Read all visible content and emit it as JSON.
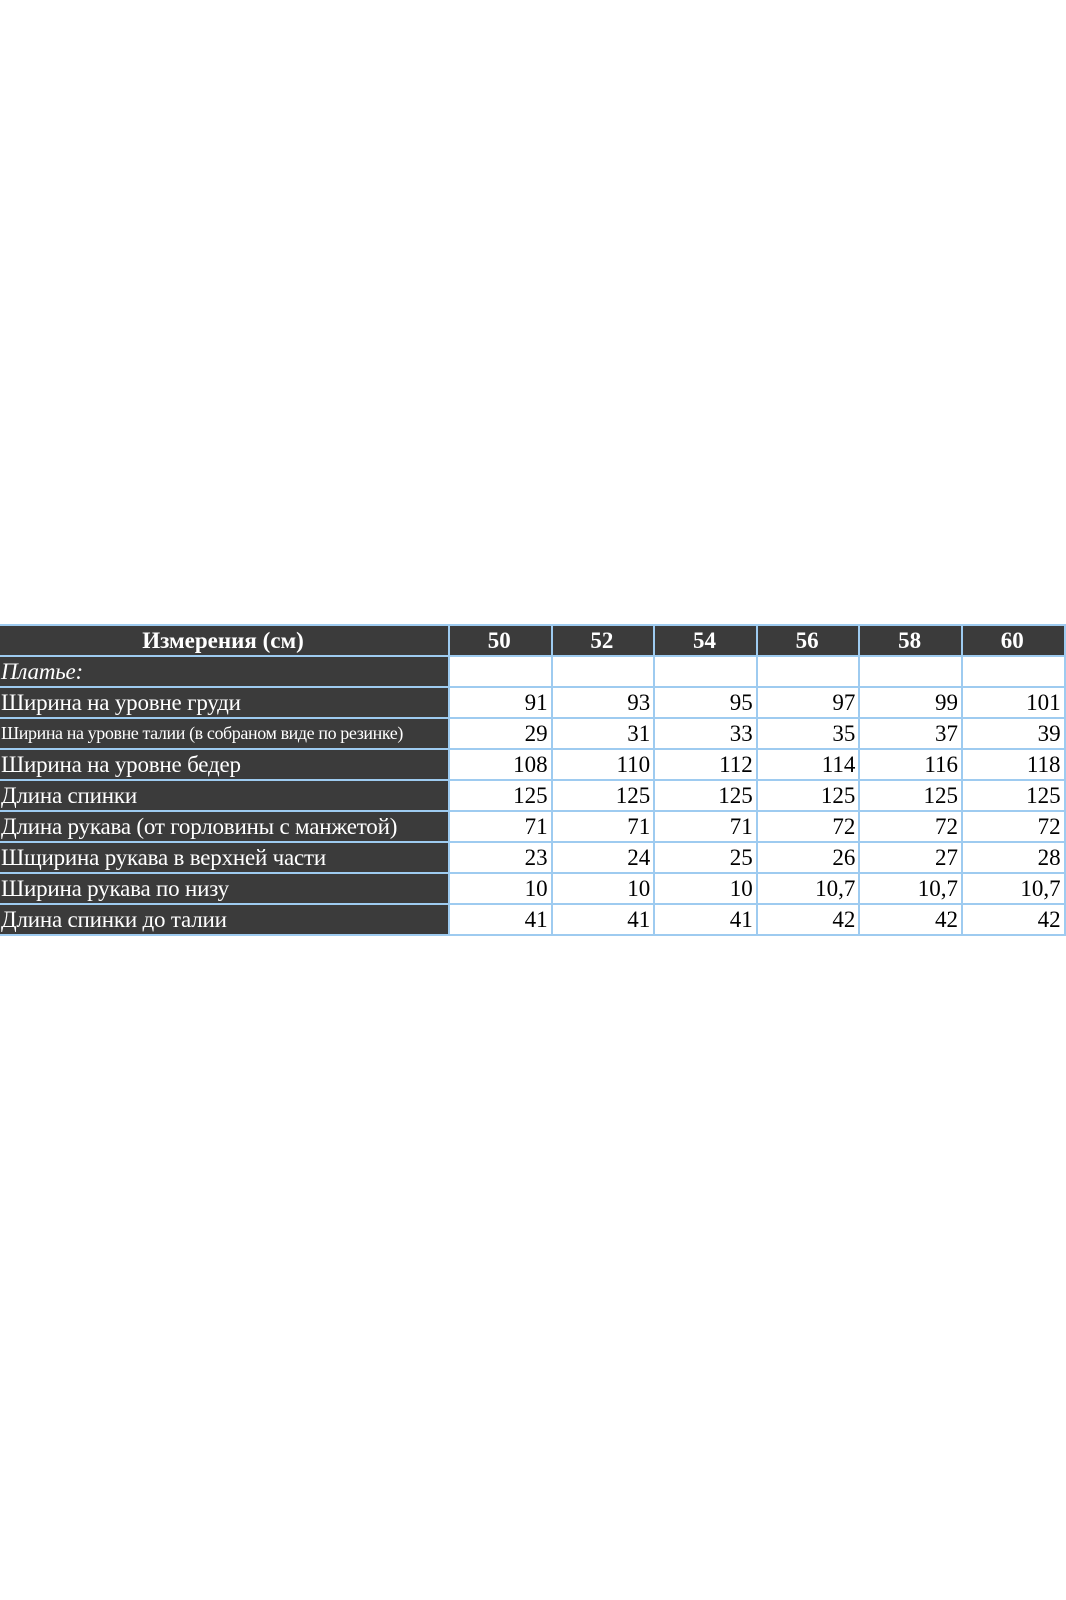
{
  "table": {
    "header": {
      "label": "Измерения (см)",
      "sizes": [
        "50",
        "52",
        "54",
        "56",
        "58",
        "60"
      ]
    },
    "section_label": "Платье:",
    "rows": [
      {
        "label": "Ширина на уровне груди",
        "values": [
          "91",
          "93",
          "95",
          "97",
          "99",
          "101"
        ]
      },
      {
        "label": "Ширина на уровне талии (в собраном виде по резинке)",
        "values": [
          "29",
          "31",
          "33",
          "35",
          "37",
          "39"
        ]
      },
      {
        "label": "Ширина на уровне бедер",
        "values": [
          "108",
          "110",
          "112",
          "114",
          "116",
          "118"
        ]
      },
      {
        "label": "Длина спинки",
        "values": [
          "125",
          "125",
          "125",
          "125",
          "125",
          "125"
        ]
      },
      {
        "label": "Длина рукава (от горловины с манжетой)",
        "values": [
          "71",
          "71",
          "71",
          "72",
          "72",
          "72"
        ]
      },
      {
        "label": "Шщирина рукава в верхней части",
        "values": [
          "23",
          "24",
          "25",
          "26",
          "27",
          "28"
        ]
      },
      {
        "label": "Ширина рукава по низу",
        "values": [
          "10",
          "10",
          "10",
          "10,7",
          "10,7",
          "10,7"
        ]
      },
      {
        "label": "Длина спинки до талии",
        "values": [
          "41",
          "41",
          "41",
          "42",
          "42",
          "42"
        ]
      }
    ]
  },
  "colors": {
    "header_bg": "#3b3b3b",
    "header_text": "#ffffff",
    "border": "#9ecbf0",
    "cell_bg": "#ffffff"
  }
}
